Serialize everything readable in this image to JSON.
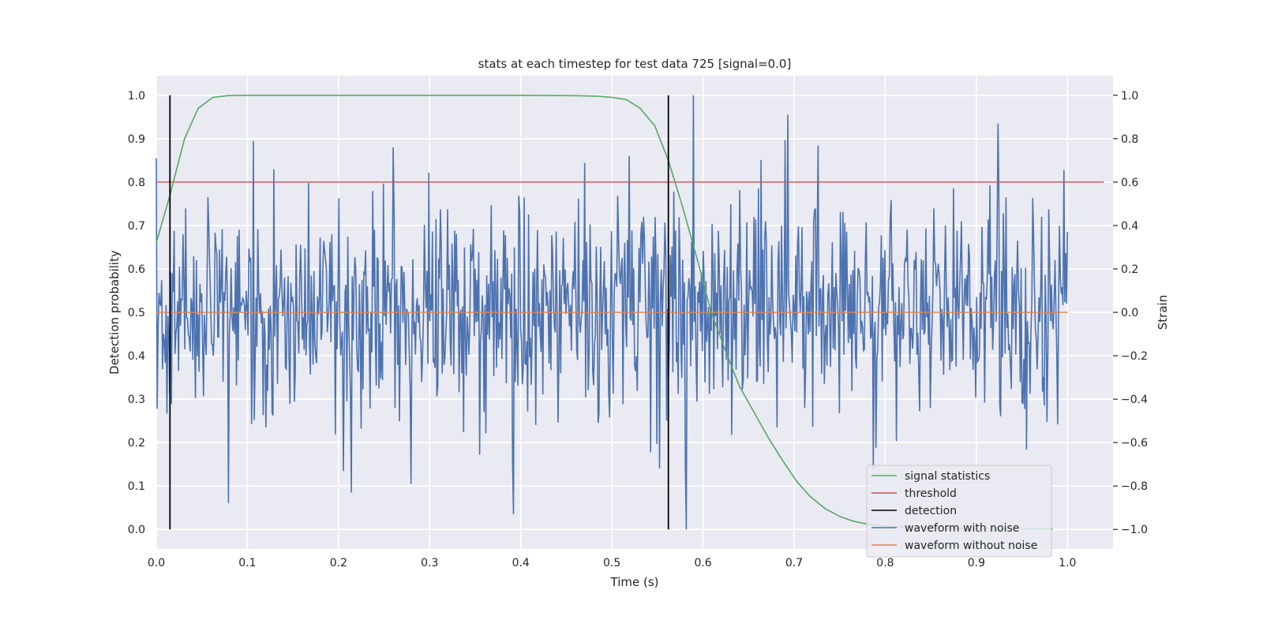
{
  "chart_data": {
    "type": "line",
    "title": "stats at each timestep for test data 725 [signal=0.0]",
    "xlabel": "Time (s)",
    "ylabel_left": "Detection probability",
    "ylabel_right": "Strain",
    "xlim": [
      0.0,
      1.05
    ],
    "ylim_left": [
      -0.045,
      1.045
    ],
    "ylim_right": [
      -1.09,
      1.09
    ],
    "x_ticks": [
      "0.0",
      "0.1",
      "0.2",
      "0.3",
      "0.4",
      "0.5",
      "0.6",
      "0.7",
      "0.8",
      "0.9",
      "1.0"
    ],
    "y_ticks_left": [
      "0.0",
      "0.1",
      "0.2",
      "0.3",
      "0.4",
      "0.5",
      "0.6",
      "0.7",
      "0.8",
      "0.9",
      "1.0"
    ],
    "y_ticks_right": [
      "−1.0",
      "−0.8",
      "−0.6",
      "−0.4",
      "−0.2",
      "0.0",
      "0.2",
      "0.4",
      "0.6",
      "0.8",
      "1.0"
    ],
    "grid": true,
    "background": "#eaeaf2",
    "legend_position": "lower-right",
    "series": [
      {
        "name": "signal statistics",
        "axis": "left",
        "color": "#55a868",
        "x": [
          0.0,
          0.015,
          0.031,
          0.046,
          0.062,
          0.078,
          0.094,
          0.2,
          0.3,
          0.4,
          0.46,
          0.485,
          0.5,
          0.516,
          0.531,
          0.547,
          0.562,
          0.578,
          0.594,
          0.609,
          0.625,
          0.64,
          0.656,
          0.672,
          0.687,
          0.703,
          0.718,
          0.734,
          0.75,
          0.765,
          0.781,
          0.797,
          0.812,
          0.828,
          0.843,
          0.859,
          0.875,
          0.89,
          0.906,
          0.921,
          0.937,
          0.953,
          0.968,
          0.984
        ],
        "values": [
          0.66,
          0.77,
          0.9,
          0.97,
          0.995,
          0.999,
          1.0,
          1.0,
          1.0,
          1.0,
          0.999,
          0.998,
          0.995,
          0.99,
          0.97,
          0.93,
          0.85,
          0.74,
          0.62,
          0.5,
          0.41,
          0.33,
          0.27,
          0.21,
          0.16,
          0.11,
          0.075,
          0.048,
          0.03,
          0.019,
          0.012,
          0.008,
          0.006,
          0.005,
          0.004,
          0.003,
          0.002,
          0.002,
          0.002,
          0.001,
          0.001,
          0.001,
          0.001,
          0.001
        ]
      },
      {
        "name": "threshold",
        "axis": "left",
        "color": "#c44e52",
        "x": [
          0.0,
          1.04
        ],
        "values": [
          0.8,
          0.8
        ]
      },
      {
        "name": "detection",
        "axis": "left",
        "color": "#000000",
        "segments": [
          {
            "x": 0.015,
            "y": [
              0.0,
              1.0
            ]
          },
          {
            "x": 0.562,
            "y": [
              0.0,
              1.0
            ]
          }
        ]
      },
      {
        "name": "waveform with noise",
        "axis": "right",
        "color": "#4c72b0",
        "description_free": true,
        "x_start": 0.0,
        "x_end": 1.0,
        "n_points": 1024,
        "std": 0.26,
        "seed": 725,
        "peaks": [
          {
            "x": 0.0,
            "y": 0.71
          },
          {
            "x": 0.107,
            "y": 0.79
          },
          {
            "x": 0.26,
            "y": 0.76
          },
          {
            "x": 0.392,
            "y": -0.93
          },
          {
            "x": 0.582,
            "y": -1.0
          },
          {
            "x": 0.589,
            "y": 1.0
          },
          {
            "x": 0.693,
            "y": 0.91
          },
          {
            "x": 0.924,
            "y": 0.87
          },
          {
            "x": 0.214,
            "y": -0.83
          }
        ]
      },
      {
        "name": "waveform without noise",
        "axis": "right",
        "color": "#dd8452",
        "x": [
          0.0,
          1.0
        ],
        "values": [
          0.0,
          0.0
        ]
      }
    ]
  }
}
